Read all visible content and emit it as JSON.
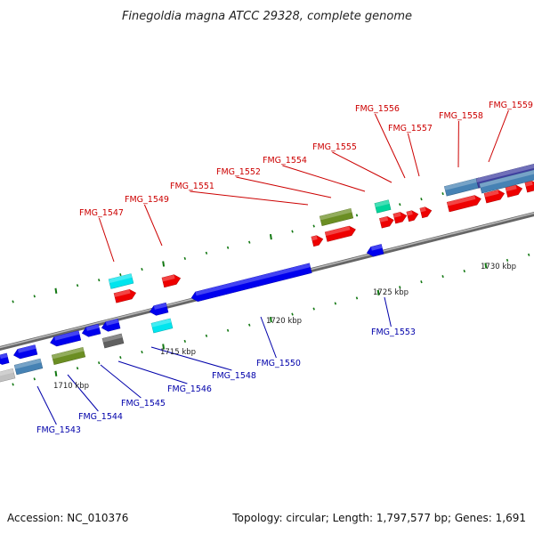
{
  "title": "Finegoldia magna ATCC 29328, complete genome",
  "footer": {
    "accession": "Accession: NC_010376",
    "summary": "Topology: circular; Length: 1,797,577 bp; Genes: 1,691"
  },
  "colors": {
    "forward_label": "#cc0000",
    "reverse_label": "#0000aa",
    "backbone": "#888888",
    "tick": "#117711"
  },
  "scale_labels": [
    "1710 kbp",
    "1715 kbp",
    "1720 kbp",
    "1725 kbp",
    "1730 kbp"
  ],
  "genes_forward": [
    "FMG_1547",
    "FMG_1549",
    "FMG_1551",
    "FMG_1552",
    "FMG_1554",
    "FMG_1555",
    "FMG_1556",
    "FMG_1557",
    "FMG_1558",
    "FMG_1559"
  ],
  "genes_reverse": [
    "FMG_1543",
    "FMG_1544",
    "FMG_1545",
    "FMG_1546",
    "FMG_1548",
    "FMG_1550",
    "FMG_1553"
  ]
}
